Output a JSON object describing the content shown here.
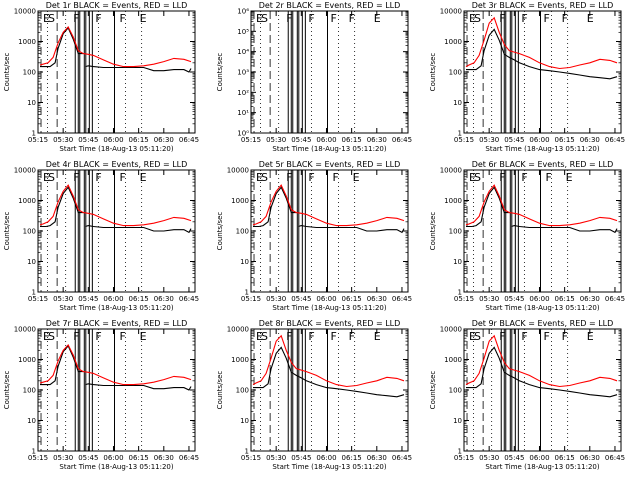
{
  "figure": {
    "xlabel": "Start Time (18-Aug-13 05:11:20)",
    "ylabel": "Counts/sec",
    "colors": {
      "events": "#000000",
      "lld": "#ff0000",
      "axes": "#000000"
    }
  },
  "chart_data": [
    {
      "type": "line",
      "title": "Det 1r BLACK = Events, RED = LLD",
      "xticks": [
        "05:15",
        "05:30",
        "05:45",
        "06:00",
        "06:15",
        "06:30",
        "06:45"
      ],
      "yticks": [
        "1",
        "10",
        "100",
        "1000",
        "10000"
      ],
      "ylim": [
        1,
        10000
      ],
      "yscale": "log",
      "flags": [
        "E",
        "S",
        "F",
        "F",
        "F",
        "E"
      ],
      "series": [
        {
          "name": "Events",
          "color": "#000000",
          "x": [
            5.27,
            5.33,
            5.37,
            5.42,
            5.45,
            5.5,
            5.55,
            5.6,
            5.65,
            5.7,
            5.71,
            5.72,
            5.75,
            5.8,
            5.9,
            6.0,
            6.1,
            6.2,
            6.3,
            6.4,
            6.5,
            6.6,
            6.7,
            6.75,
            6.77
          ],
          "values": [
            150,
            150,
            150,
            200,
            600,
            1800,
            2800,
            1200,
            400,
            400,
            null,
            150,
            160,
            150,
            140,
            140,
            140,
            140,
            140,
            110,
            110,
            120,
            120,
            100,
            130
          ]
        },
        {
          "name": "LLD",
          "color": "#ff0000",
          "x": [
            5.27,
            5.3,
            5.35,
            5.4,
            5.45,
            5.5,
            5.55,
            5.6,
            5.65,
            5.7,
            5.75,
            5.8,
            5.9,
            6.0,
            6.1,
            6.2,
            6.3,
            6.4,
            6.5,
            6.6,
            6.7,
            6.77
          ],
          "values": [
            170,
            180,
            200,
            300,
            900,
            2000,
            3000,
            1400,
            500,
            400,
            380,
            350,
            250,
            180,
            150,
            150,
            160,
            180,
            220,
            280,
            260,
            220
          ]
        }
      ]
    },
    {
      "type": "line",
      "title": "Det 2r BLACK = Events, RED = LLD",
      "xticks": [
        "05:15",
        "05:30",
        "05:45",
        "06:00",
        "06:15",
        "06:30",
        "06:45"
      ],
      "yticks": [
        "10⁰",
        "10¹",
        "10²",
        "10³",
        "10⁴",
        "10⁵",
        "10⁶"
      ],
      "ylim": [
        1,
        1000000
      ],
      "yscale": "log",
      "flags": [
        "E",
        "S",
        "F",
        "F",
        "F",
        "F",
        "E"
      ],
      "series": []
    },
    {
      "type": "line",
      "title": "Det 3r BLACK = Events, RED = LLD",
      "xticks": [
        "05:15",
        "05:30",
        "05:45",
        "06:00",
        "06:15",
        "06:30",
        "06:45"
      ],
      "yticks": [
        "1",
        "10",
        "100",
        "1000",
        "10000"
      ],
      "ylim": [
        1,
        10000
      ],
      "yscale": "log",
      "flags": [
        "E",
        "S",
        "F",
        "F",
        "F",
        "F",
        "E"
      ],
      "series": [
        {
          "name": "Events",
          "color": "#000000",
          "x": [
            5.27,
            5.33,
            5.37,
            5.42,
            5.45,
            5.5,
            5.55,
            5.6,
            5.65,
            5.7,
            5.75,
            5.8,
            5.9,
            6.0,
            6.1,
            6.2,
            6.3,
            6.4,
            6.5,
            6.6,
            6.7,
            6.77
          ],
          "values": [
            120,
            120,
            120,
            160,
            500,
            1600,
            2500,
            1100,
            380,
            300,
            250,
            200,
            150,
            120,
            110,
            100,
            90,
            80,
            70,
            65,
            60,
            70
          ]
        },
        {
          "name": "LLD",
          "color": "#ff0000",
          "x": [
            5.27,
            5.3,
            5.35,
            5.4,
            5.45,
            5.5,
            5.55,
            5.6,
            5.65,
            5.7,
            5.75,
            5.8,
            5.9,
            6.0,
            6.1,
            6.2,
            6.3,
            6.4,
            6.5,
            6.6,
            6.7,
            6.77
          ],
          "values": [
            150,
            170,
            200,
            350,
            1100,
            4000,
            6000,
            2000,
            800,
            500,
            450,
            400,
            300,
            200,
            150,
            130,
            140,
            170,
            200,
            260,
            240,
            200
          ]
        }
      ]
    },
    {
      "type": "line",
      "title": "Det 4r BLACK = Events, RED = LLD",
      "xticks": [
        "05:15",
        "05:30",
        "05:45",
        "06:00",
        "06:15",
        "06:30",
        "06:45"
      ],
      "yticks": [
        "1",
        "10",
        "100",
        "1000",
        "10000"
      ],
      "ylim": [
        1,
        10000
      ],
      "yscale": "log",
      "flags": [
        "E",
        "S",
        "F",
        "F",
        "F",
        "E"
      ],
      "series": [
        {
          "name": "Events",
          "color": "#000000",
          "x": [
            5.27,
            5.33,
            5.37,
            5.42,
            5.45,
            5.5,
            5.55,
            5.6,
            5.65,
            5.7,
            5.71,
            5.72,
            5.75,
            5.8,
            5.9,
            6.0,
            6.1,
            6.2,
            6.3,
            6.4,
            6.5,
            6.6,
            6.7,
            6.75,
            6.77
          ],
          "values": [
            140,
            140,
            150,
            200,
            600,
            1700,
            2700,
            1200,
            400,
            400,
            null,
            140,
            150,
            140,
            130,
            130,
            130,
            130,
            130,
            100,
            100,
            110,
            110,
            90,
            120
          ]
        },
        {
          "name": "LLD",
          "color": "#ff0000",
          "x": [
            5.27,
            5.3,
            5.35,
            5.4,
            5.45,
            5.5,
            5.55,
            5.6,
            5.65,
            5.7,
            5.75,
            5.8,
            5.9,
            6.0,
            6.1,
            6.2,
            6.3,
            6.4,
            6.5,
            6.6,
            6.7,
            6.77
          ],
          "values": [
            160,
            170,
            200,
            300,
            900,
            2000,
            3200,
            1400,
            500,
            400,
            380,
            350,
            250,
            180,
            150,
            150,
            160,
            180,
            220,
            280,
            260,
            220
          ]
        }
      ]
    },
    {
      "type": "line",
      "title": "Det 5r BLACK = Events, RED = LLD",
      "xticks": [
        "05:15",
        "05:30",
        "05:45",
        "06:00",
        "06:15",
        "06:30",
        "06:45"
      ],
      "yticks": [
        "1",
        "10",
        "100",
        "1000",
        "10000"
      ],
      "ylim": [
        1,
        10000
      ],
      "yscale": "log",
      "flags": [
        "E",
        "S",
        "F",
        "F",
        "F",
        "E"
      ],
      "series": [
        {
          "name": "Events",
          "color": "#000000",
          "x": [
            5.27,
            5.33,
            5.37,
            5.42,
            5.45,
            5.5,
            5.55,
            5.6,
            5.65,
            5.7,
            5.71,
            5.72,
            5.75,
            5.8,
            5.9,
            6.0,
            6.1,
            6.2,
            6.3,
            6.4,
            6.5,
            6.6,
            6.7,
            6.75,
            6.77
          ],
          "values": [
            140,
            140,
            150,
            200,
            600,
            1700,
            2700,
            1200,
            400,
            400,
            null,
            140,
            150,
            140,
            130,
            130,
            130,
            130,
            130,
            100,
            100,
            110,
            110,
            90,
            120
          ]
        },
        {
          "name": "LLD",
          "color": "#ff0000",
          "x": [
            5.27,
            5.3,
            5.35,
            5.4,
            5.45,
            5.5,
            5.55,
            5.6,
            5.65,
            5.7,
            5.75,
            5.8,
            5.9,
            6.0,
            6.1,
            6.2,
            6.3,
            6.4,
            6.5,
            6.6,
            6.7,
            6.77
          ],
          "values": [
            160,
            170,
            200,
            300,
            900,
            2000,
            3200,
            1400,
            500,
            400,
            380,
            350,
            250,
            180,
            150,
            150,
            160,
            180,
            220,
            280,
            260,
            220
          ]
        }
      ]
    },
    {
      "type": "line",
      "title": "Det 6r BLACK = Events, RED = LLD",
      "xticks": [
        "05:15",
        "05:30",
        "05:45",
        "06:00",
        "06:15",
        "06:30",
        "06:45"
      ],
      "yticks": [
        "1",
        "10",
        "100",
        "1000",
        "10000"
      ],
      "ylim": [
        1,
        10000
      ],
      "yscale": "log",
      "flags": [
        "E",
        "S",
        "F",
        "F",
        "F",
        "E"
      ],
      "series": [
        {
          "name": "Events",
          "color": "#000000",
          "x": [
            5.27,
            5.33,
            5.37,
            5.42,
            5.45,
            5.5,
            5.55,
            5.6,
            5.65,
            5.7,
            5.71,
            5.72,
            5.75,
            5.8,
            5.9,
            6.0,
            6.1,
            6.2,
            6.3,
            6.4,
            6.5,
            6.6,
            6.7,
            6.75,
            6.77
          ],
          "values": [
            140,
            140,
            150,
            200,
            600,
            1700,
            2700,
            1200,
            400,
            400,
            null,
            140,
            150,
            140,
            130,
            130,
            130,
            130,
            130,
            100,
            100,
            110,
            110,
            90,
            120
          ]
        },
        {
          "name": "LLD",
          "color": "#ff0000",
          "x": [
            5.27,
            5.3,
            5.35,
            5.4,
            5.45,
            5.5,
            5.55,
            5.6,
            5.65,
            5.7,
            5.75,
            5.8,
            5.9,
            6.0,
            6.1,
            6.2,
            6.3,
            6.4,
            6.5,
            6.6,
            6.7,
            6.77
          ],
          "values": [
            160,
            170,
            200,
            300,
            900,
            2000,
            3200,
            1400,
            500,
            400,
            380,
            350,
            250,
            180,
            150,
            150,
            160,
            180,
            220,
            280,
            260,
            220
          ]
        }
      ]
    },
    {
      "type": "line",
      "title": "Det 7r BLACK = Events, RED = LLD",
      "xticks": [
        "05:15",
        "05:30",
        "05:45",
        "06:00",
        "06:15",
        "06:30",
        "06:45"
      ],
      "yticks": [
        "1",
        "10",
        "100",
        "1000",
        "10000"
      ],
      "ylim": [
        1,
        10000
      ],
      "yscale": "log",
      "flags": [
        "E",
        "S",
        "F",
        "F",
        "F",
        "E"
      ],
      "series": [
        {
          "name": "Events",
          "color": "#000000",
          "x": [
            5.27,
            5.33,
            5.37,
            5.42,
            5.45,
            5.5,
            5.55,
            5.6,
            5.65,
            5.7,
            5.71,
            5.72,
            5.75,
            5.8,
            5.9,
            6.0,
            6.1,
            6.2,
            6.3,
            6.4,
            6.5,
            6.6,
            6.7,
            6.75,
            6.77
          ],
          "values": [
            150,
            150,
            150,
            200,
            600,
            1800,
            2800,
            1200,
            400,
            400,
            null,
            150,
            160,
            150,
            140,
            140,
            140,
            140,
            140,
            110,
            110,
            120,
            120,
            100,
            130
          ]
        },
        {
          "name": "LLD",
          "color": "#ff0000",
          "x": [
            5.27,
            5.3,
            5.35,
            5.4,
            5.45,
            5.5,
            5.55,
            5.6,
            5.65,
            5.7,
            5.75,
            5.8,
            5.9,
            6.0,
            6.1,
            6.2,
            6.3,
            6.4,
            6.5,
            6.6,
            6.7,
            6.77
          ],
          "values": [
            170,
            180,
            200,
            300,
            900,
            2000,
            3000,
            1400,
            500,
            400,
            380,
            350,
            250,
            180,
            150,
            150,
            160,
            180,
            220,
            280,
            260,
            220
          ]
        }
      ]
    },
    {
      "type": "line",
      "title": "Det 8r BLACK = Events, RED = LLD",
      "xticks": [
        "05:15",
        "05:30",
        "05:45",
        "06:00",
        "06:15",
        "06:30",
        "06:45"
      ],
      "yticks": [
        "1",
        "10",
        "100",
        "1000",
        "10000"
      ],
      "ylim": [
        1,
        10000
      ],
      "yscale": "log",
      "flags": [
        "E",
        "S",
        "F",
        "F",
        "F",
        "F",
        "E"
      ],
      "series": [
        {
          "name": "Events",
          "color": "#000000",
          "x": [
            5.27,
            5.33,
            5.37,
            5.42,
            5.45,
            5.5,
            5.55,
            5.6,
            5.65,
            5.7,
            5.75,
            5.8,
            5.9,
            6.0,
            6.1,
            6.2,
            6.3,
            6.4,
            6.5,
            6.6,
            6.7,
            6.77
          ],
          "values": [
            120,
            120,
            120,
            160,
            500,
            1600,
            2500,
            1100,
            380,
            300,
            250,
            200,
            150,
            120,
            110,
            100,
            90,
            80,
            70,
            65,
            60,
            70
          ]
        },
        {
          "name": "LLD",
          "color": "#ff0000",
          "x": [
            5.27,
            5.3,
            5.35,
            5.4,
            5.45,
            5.5,
            5.55,
            5.6,
            5.65,
            5.7,
            5.75,
            5.8,
            5.9,
            6.0,
            6.1,
            6.2,
            6.3,
            6.4,
            6.5,
            6.6,
            6.7,
            6.77
          ],
          "values": [
            150,
            170,
            200,
            350,
            1100,
            4000,
            6000,
            2000,
            800,
            500,
            450,
            400,
            300,
            200,
            150,
            130,
            140,
            170,
            200,
            260,
            240,
            200
          ]
        }
      ]
    },
    {
      "type": "line",
      "title": "Det 9r BLACK = Events, RED = LLD",
      "xticks": [
        "05:15",
        "05:30",
        "05:45",
        "06:00",
        "06:15",
        "06:30",
        "06:45"
      ],
      "yticks": [
        "1",
        "10",
        "100",
        "1000",
        "10000"
      ],
      "ylim": [
        1,
        10000
      ],
      "yscale": "log",
      "flags": [
        "E",
        "S",
        "F",
        "F",
        "F",
        "F",
        "E"
      ],
      "series": [
        {
          "name": "Events",
          "color": "#000000",
          "x": [
            5.27,
            5.33,
            5.37,
            5.42,
            5.45,
            5.5,
            5.55,
            5.6,
            5.65,
            5.7,
            5.75,
            5.8,
            5.9,
            6.0,
            6.1,
            6.2,
            6.3,
            6.4,
            6.5,
            6.6,
            6.7,
            6.77
          ],
          "values": [
            120,
            120,
            120,
            160,
            500,
            1600,
            2500,
            1100,
            380,
            300,
            250,
            200,
            150,
            120,
            110,
            100,
            90,
            80,
            70,
            65,
            60,
            70
          ]
        },
        {
          "name": "LLD",
          "color": "#ff0000",
          "x": [
            5.27,
            5.3,
            5.35,
            5.4,
            5.45,
            5.5,
            5.55,
            5.6,
            5.65,
            5.7,
            5.75,
            5.8,
            5.9,
            6.0,
            6.1,
            6.2,
            6.3,
            6.4,
            6.5,
            6.6,
            6.7,
            6.77
          ],
          "values": [
            150,
            170,
            200,
            350,
            1100,
            4000,
            6000,
            2000,
            800,
            500,
            450,
            400,
            300,
            200,
            150,
            130,
            140,
            170,
            200,
            260,
            240,
            200
          ]
        }
      ]
    }
  ]
}
